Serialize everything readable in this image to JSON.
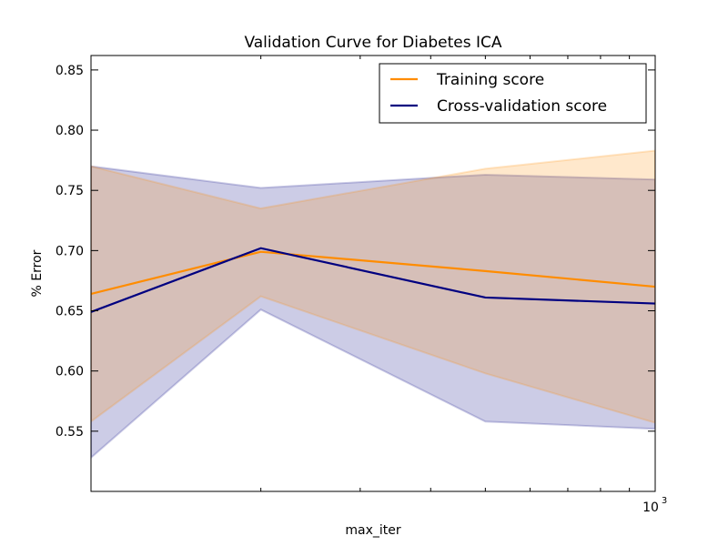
{
  "chart_data": {
    "type": "line",
    "title": "Validation Curve for Diabetes ICA",
    "xlabel": "max_iter",
    "ylabel": "% Error",
    "xscale": "log",
    "xlim": [
      100,
      1000
    ],
    "ylim": [
      0.5,
      0.862
    ],
    "yticks": [
      0.55,
      0.6,
      0.65,
      0.7,
      0.75,
      0.8,
      0.85
    ],
    "ytick_labels": [
      "0.55",
      "0.60",
      "0.65",
      "0.70",
      "0.75",
      "0.80",
      "0.85"
    ],
    "xtick_major_label": {
      "base": "10",
      "exp": "3",
      "value": 1000
    },
    "x": [
      100,
      200,
      500,
      1000
    ],
    "grid": false,
    "legend_position": "top-right",
    "series": [
      {
        "name": "Training score",
        "color": "#ff8c00",
        "band_color": "#ff8c00",
        "values": [
          0.664,
          0.699,
          0.683,
          0.67
        ],
        "lower": [
          0.558,
          0.662,
          0.598,
          0.557
        ],
        "upper": [
          0.77,
          0.735,
          0.768,
          0.783
        ]
      },
      {
        "name": "Cross-validation score",
        "color": "#000080",
        "band_color": "#000080",
        "values": [
          0.649,
          0.702,
          0.661,
          0.656
        ],
        "lower": [
          0.528,
          0.651,
          0.558,
          0.552
        ],
        "upper": [
          0.77,
          0.752,
          0.763,
          0.759
        ]
      }
    ]
  }
}
